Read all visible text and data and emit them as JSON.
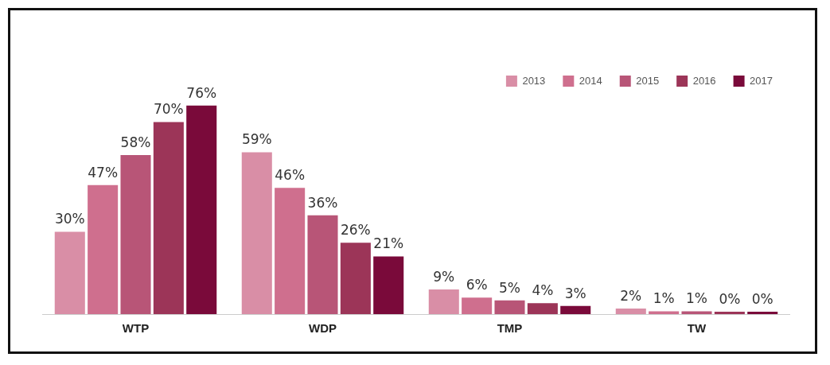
{
  "chart_data": {
    "type": "bar",
    "categories": [
      "WTP",
      "WDP",
      "TMP",
      "TW"
    ],
    "series": [
      {
        "name": "2013",
        "color": "#d98ea6",
        "values": [
          30,
          59,
          9,
          2
        ],
        "value_labels": [
          "30%",
          "59%",
          "9%",
          "2%"
        ]
      },
      {
        "name": "2014",
        "color": "#cf6f8e",
        "values": [
          47,
          46,
          6,
          1
        ],
        "value_labels": [
          "47%",
          "46%",
          "6%",
          "1%"
        ]
      },
      {
        "name": "2015",
        "color": "#b85577",
        "values": [
          58,
          36,
          5,
          1
        ],
        "value_labels": [
          "58%",
          "36%",
          "5%",
          "1%"
        ]
      },
      {
        "name": "2016",
        "color": "#9c3558",
        "values": [
          70,
          26,
          4,
          0
        ],
        "value_labels": [
          "70%",
          "26%",
          "4%",
          "0%"
        ]
      },
      {
        "name": "2017",
        "color": "#7a0a3a",
        "values": [
          76,
          21,
          3,
          0
        ],
        "value_labels": [
          "76%",
          "21%",
          "3%",
          "0%"
        ]
      }
    ],
    "legend": "top right",
    "grid": false
  }
}
